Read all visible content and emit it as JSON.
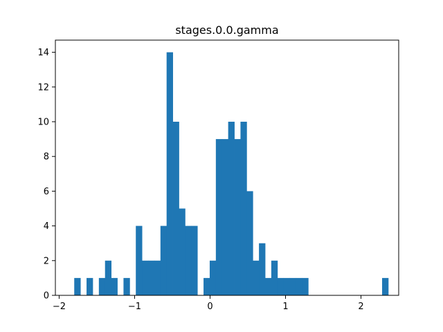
{
  "chart_data": {
    "type": "bar",
    "subtype": "histogram",
    "title": "stages.0.0.gamma",
    "xlabel": "",
    "ylabel": "",
    "xlim": [
      -2.05,
      2.5
    ],
    "ylim": [
      0,
      14.7
    ],
    "x_ticks": [
      -2,
      -1,
      0,
      1,
      2
    ],
    "x_tick_labels": [
      "−2",
      "−1",
      "0",
      "1",
      "2"
    ],
    "y_ticks": [
      0,
      2,
      4,
      6,
      8,
      10,
      12,
      14
    ],
    "y_tick_labels": [
      "0",
      "2",
      "4",
      "6",
      "8",
      "10",
      "12",
      "14"
    ],
    "bin_start": -1.8,
    "bin_width": 0.0816,
    "counts": [
      1,
      0,
      1,
      0,
      1,
      2,
      1,
      0,
      1,
      0,
      4,
      2,
      2,
      2,
      4,
      14,
      10,
      5,
      4,
      4,
      0,
      1,
      2,
      9,
      9,
      10,
      9,
      10,
      6,
      2,
      3,
      1,
      2,
      1,
      1,
      1,
      1,
      1,
      0,
      0,
      0,
      0,
      0,
      0,
      0,
      0,
      0,
      0,
      0,
      0,
      1
    ],
    "bar_color": "#1f77b4",
    "grid": false,
    "legend": "none"
  }
}
